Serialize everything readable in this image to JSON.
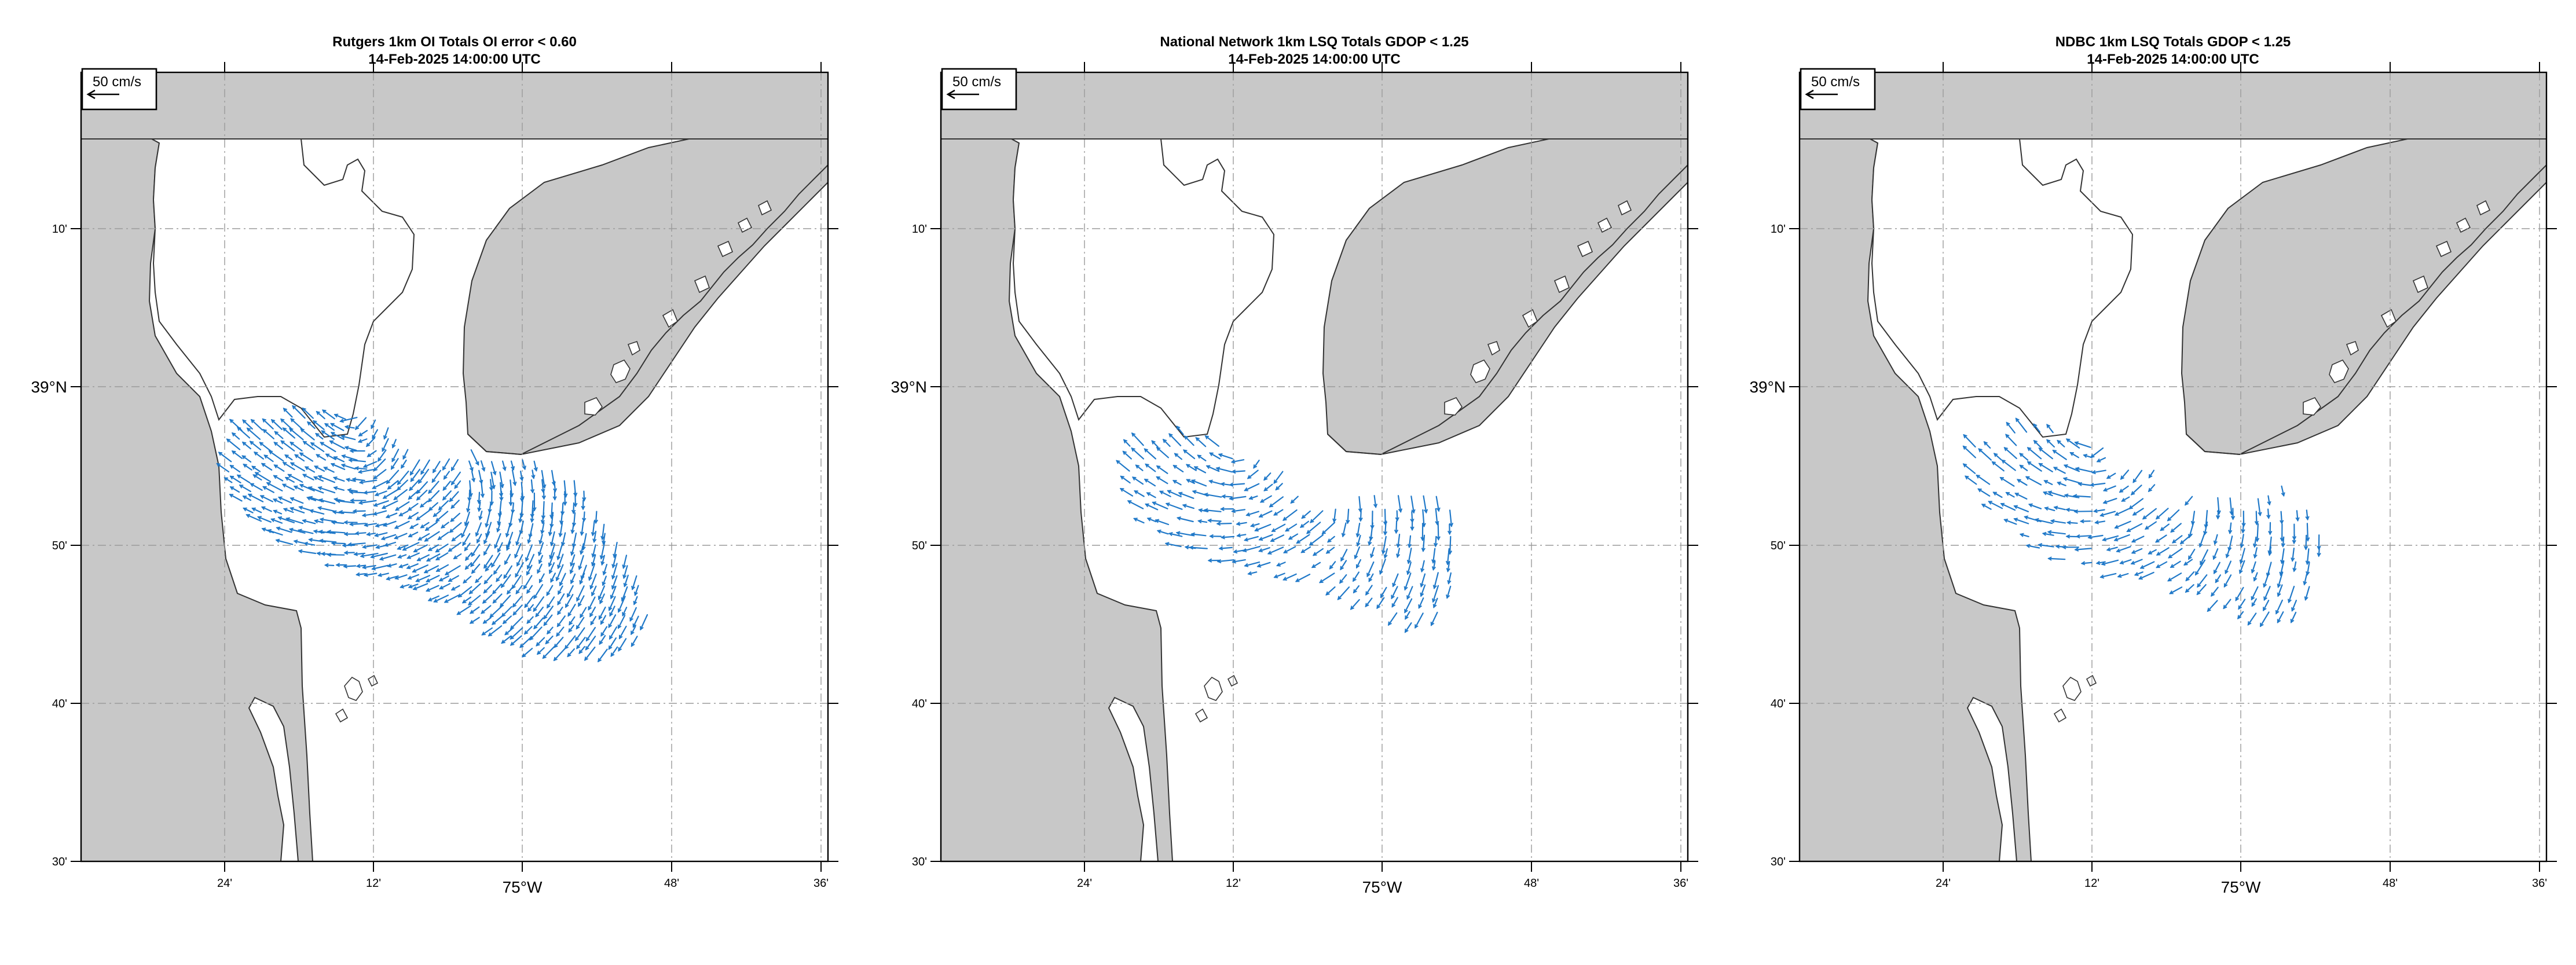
{
  "figure": {
    "panels": [
      {
        "title": "Rutgers 1km OI Totals OI error < 0.60",
        "timestamp": "14-Feb-2025 14:00:00 UTC",
        "scale_label": "50 cm/s"
      },
      {
        "title": "National Network 1km LSQ Totals GDOP < 1.25",
        "timestamp": "14-Feb-2025 14:00:00 UTC",
        "scale_label": "50 cm/s"
      },
      {
        "title": "NDBC 1km LSQ Totals GDOP < 1.25",
        "timestamp": "14-Feb-2025 14:00:00 UTC",
        "scale_label": "50 cm/s"
      }
    ],
    "lat_ticks": [
      "10'",
      "39°N",
      "50'",
      "40'",
      "30'"
    ],
    "lon_ticks": [
      "24'",
      "12'",
      "75°W",
      "48'",
      "36'"
    ],
    "colors": {
      "land": "#c8c8c8",
      "water": "#ffffff",
      "vectors": "#1f78c8",
      "grid": "#9a9a9a"
    }
  }
}
